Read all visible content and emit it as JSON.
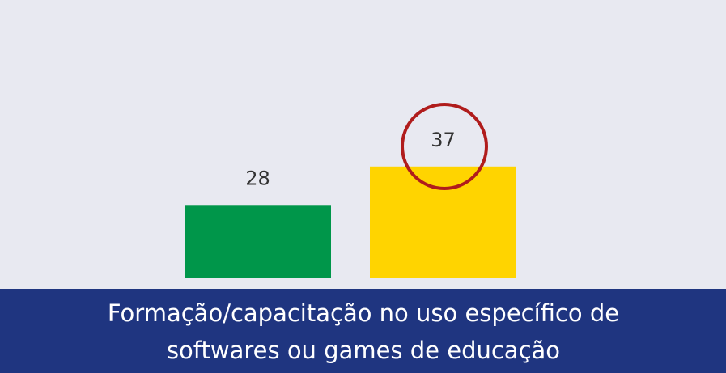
{
  "chart_data": {
    "type": "bar",
    "title": [
      "Formação/capacitação no uso específico de",
      "softwares ou games de educação"
    ],
    "categories": [
      null,
      null
    ],
    "values": [
      28,
      37
    ],
    "colors": [
      "#00964a",
      "#ffd400"
    ],
    "ylim": [
      11,
      76
    ]
  }
}
